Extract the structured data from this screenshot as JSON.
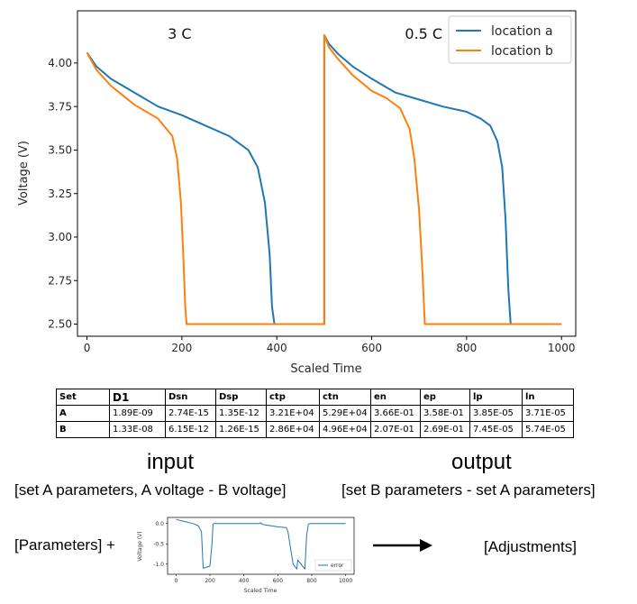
{
  "chart_data": [
    {
      "type": "line",
      "xlabel": "Scaled Time",
      "ylabel": "Voltage (V)",
      "xlim": [
        -20,
        1030
      ],
      "ylim": [
        2.43,
        4.3
      ],
      "xticks": [
        0,
        200,
        400,
        600,
        800,
        1000
      ],
      "yticks": [
        2.5,
        2.75,
        3.0,
        3.25,
        3.5,
        3.75,
        4.0
      ],
      "ytick_labels": [
        "2.50",
        "2.75",
        "3.00",
        "3.25",
        "3.50",
        "3.75",
        "4.00"
      ],
      "legend_position": "top-right",
      "annotations": [
        {
          "text": "3 C",
          "x": 170,
          "y": 4.14
        },
        {
          "text": "0.5 C",
          "x": 670,
          "y": 4.14
        }
      ],
      "series": [
        {
          "name": "location a",
          "color": "#1f77b4",
          "x": [
            0,
            20,
            50,
            100,
            150,
            200,
            250,
            300,
            340,
            360,
            375,
            385,
            390,
            395,
            500,
            500,
            510,
            530,
            560,
            600,
            650,
            700,
            750,
            800,
            830,
            850,
            865,
            875,
            882,
            888,
            893,
            1000
          ],
          "y": [
            4.06,
            3.98,
            3.91,
            3.83,
            3.75,
            3.7,
            3.64,
            3.58,
            3.5,
            3.4,
            3.2,
            2.9,
            2.6,
            2.5,
            2.5,
            4.16,
            4.11,
            4.05,
            3.98,
            3.91,
            3.83,
            3.79,
            3.75,
            3.72,
            3.68,
            3.64,
            3.55,
            3.4,
            3.1,
            2.7,
            2.5,
            2.5
          ]
        },
        {
          "name": "location b",
          "color": "#ff7f0e",
          "x": [
            0,
            20,
            50,
            100,
            150,
            180,
            190,
            198,
            203,
            207,
            210,
            500,
            500,
            510,
            530,
            560,
            600,
            630,
            660,
            680,
            690,
            700,
            707,
            712,
            1000
          ],
          "y": [
            4.06,
            3.96,
            3.87,
            3.76,
            3.68,
            3.58,
            3.45,
            3.2,
            2.9,
            2.6,
            2.5,
            2.5,
            4.16,
            4.09,
            4.02,
            3.93,
            3.84,
            3.8,
            3.74,
            3.62,
            3.45,
            3.15,
            2.8,
            2.5,
            2.5
          ]
        }
      ]
    },
    {
      "type": "line",
      "xlabel": "Scaled Time",
      "ylabel": "Voltage (V)",
      "xlim": [
        -50,
        1050
      ],
      "ylim": [
        -1.25,
        0.15
      ],
      "xticks": [
        0,
        200,
        400,
        600,
        800,
        1000
      ],
      "yticks": [
        0.0,
        -0.5,
        -1.0
      ],
      "ytick_labels": [
        "0.0",
        "-0.5",
        "-1.0"
      ],
      "legend_position": "lower-right",
      "series": [
        {
          "name": "error",
          "color": "#1f77b4",
          "x": [
            0,
            50,
            100,
            130,
            150,
            160,
            200,
            212,
            218,
            222,
            400,
            490,
            500,
            505,
            520,
            600,
            650,
            660,
            690,
            712,
            718,
            760,
            770,
            780,
            790,
            1000
          ],
          "y": [
            0.1,
            0.05,
            0.0,
            -0.05,
            -0.2,
            -1.1,
            -1.05,
            -0.5,
            -0.02,
            0.0,
            0.0,
            0.0,
            0.02,
            -0.01,
            -0.03,
            -0.08,
            -0.1,
            -0.2,
            -1.0,
            -1.12,
            -0.9,
            -1.12,
            -0.3,
            -0.02,
            0.0,
            0.0
          ]
        }
      ]
    }
  ],
  "table": {
    "headers": [
      "Set",
      "D1",
      "Dsn",
      "Dsp",
      "ctp",
      "ctn",
      "en",
      "ep",
      "lp",
      "ln"
    ],
    "rows": [
      [
        "A",
        "1.89E-09",
        "2.74E-15",
        "1.35E-12",
        "3.21E+04",
        "5.29E+04",
        "3.66E-01",
        "3.58E-01",
        "3.85E-05",
        "3.71E-05"
      ],
      [
        "B",
        "1.33E-08",
        "6.15E-12",
        "1.26E-15",
        "2.86E+04",
        "4.96E+04",
        "2.07E-01",
        "2.69E-01",
        "7.45E-05",
        "5.74E-05"
      ]
    ]
  },
  "flow": {
    "input_title": "input",
    "input_desc": "[set A parameters, A voltage - B voltage]",
    "output_title": "output",
    "output_desc": "[set B parameters - set A parameters]",
    "params_label": "[Parameters] +",
    "adjust_label": "[Adjustments]"
  }
}
